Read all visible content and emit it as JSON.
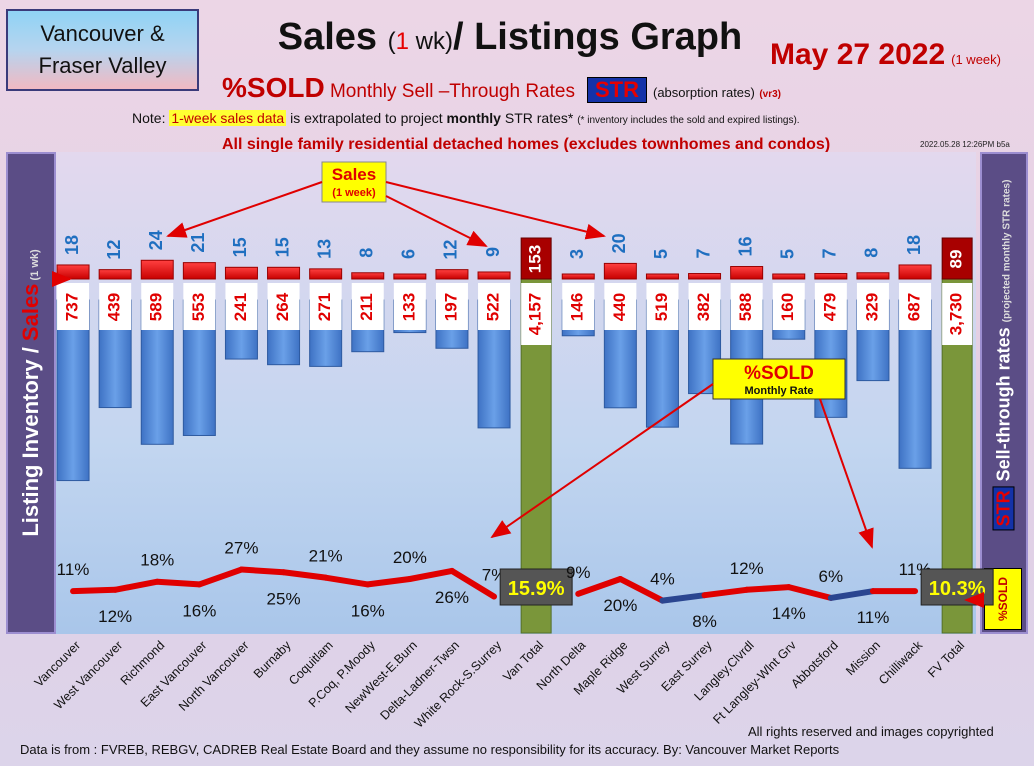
{
  "header": {
    "region_line1": "Vancouver &",
    "region_line2": "Fraser Valley",
    "title_a": "Sales ",
    "title_paren_open": "(",
    "title_num": "1",
    "title_unit": " wk)",
    "title_b": "/ Listings Graph",
    "date": "May 27  2022",
    "date_suffix": "(1 week)",
    "subtitle_sold": "%SOLD",
    "subtitle_rest": " Monthly Sell –Through Rates",
    "str_label": "STR",
    "absorption": "(absorption rates)",
    "version": "(vr3)",
    "note_prefix": "Note: ",
    "note_highlight": "1-week sales data",
    "note_mid": " is extrapolated to project ",
    "note_bold": "monthly",
    "note_end": " STR rates* ",
    "note_small": "(* inventory includes the sold and expired listings).",
    "scope": "All single family residential detached homes (excludes townhomes and condos)",
    "timestamp": "2022.05.28 12:26PM b5a"
  },
  "side": {
    "left_main": "Listing Inventory / ",
    "left_red": "Sales",
    "left_small": " (1 wk)",
    "right_main": " Sell-through rates ",
    "right_small": "(projected monthly STR rates)",
    "right_str": "STR",
    "sold_mini": "%SOLD"
  },
  "callouts": {
    "sales_title": "Sales",
    "sales_sub": "(1 week)",
    "sold_title": "%SOLD",
    "sold_sub": "Monthly Rate"
  },
  "footer": {
    "rights": "All rights reserved and  images copyrighted",
    "source": "Data is from : FVREB, REBGV, CADREB Real Estate Board and they assume no responsibility for its accuracy. By: Vancouver Market Reports"
  },
  "colors": {
    "sales_bar": "#ff0000",
    "inventory_bar": "#4f86d6",
    "total_bar": "#7a963a",
    "sales_label": "#1f6fc0",
    "inventory_label": "#e00000",
    "line_red": "#e00000",
    "line_blue": "#2a4590"
  },
  "chart_data": {
    "type": "bar",
    "categories": [
      "Vancouver",
      "West Vancouver",
      "Richmond",
      "East Vancouver",
      "North Vancouver",
      "Burnaby",
      "Coquitlam",
      "P.Coq, P.Moody",
      "NewWest-E.Burn",
      "Delta-Ladner-Twsn",
      "White Rock-S.Surrey",
      "Van Total",
      "North Delta",
      "Maple Ridge",
      "West Surrey",
      "East Surrey",
      "Langley,Clvrdl",
      "Ft Langley-Wlnt Grv",
      "Abbotsford",
      "Mission",
      "Chilliwack",
      "FV Total"
    ],
    "series": [
      {
        "values": [
          18,
          12,
          24,
          21,
          15,
          15,
          13,
          8,
          6,
          12,
          9,
          153,
          3,
          20,
          5,
          7,
          16,
          5,
          7,
          8,
          18,
          89
        ]
      },
      {
        "values": [
          "737",
          "439",
          "589",
          "553",
          "241",
          "264",
          "271",
          "211",
          "133",
          "197",
          "522",
          "4,157",
          "146",
          "440",
          "519",
          "382",
          "588",
          "160",
          "479",
          "329",
          "687",
          "3,730"
        ]
      },
      {
        "values": [
          "11%",
          "12%",
          "18%",
          "16%",
          "27%",
          "25%",
          "21%",
          "16%",
          "20%",
          "26%",
          "7%",
          "15.9%",
          "9%",
          "20%",
          "4%",
          "8%",
          "12%",
          "14%",
          "6%",
          "11%",
          "11%",
          "10.3%"
        ]
      }
    ]
  }
}
